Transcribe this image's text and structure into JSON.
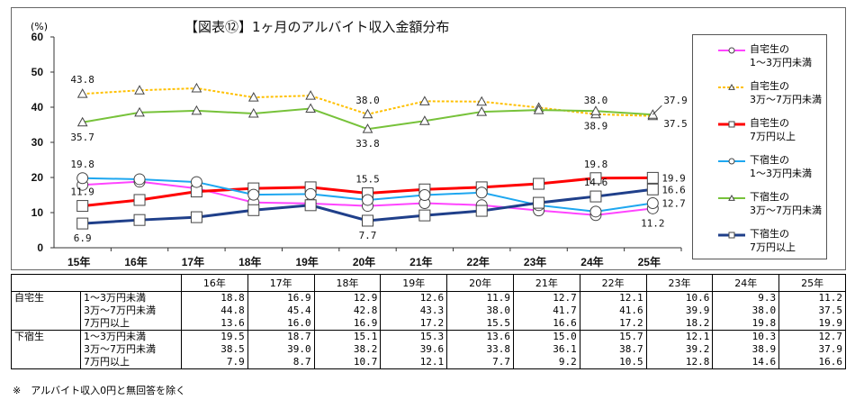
{
  "chart_data": {
    "type": "line",
    "title": "【図表⑫】1ヶ月のアルバイト収入金額分布",
    "ylabel": "(%)",
    "ylim": [
      0,
      60
    ],
    "yticks": [
      0,
      10,
      20,
      30,
      40,
      50,
      60
    ],
    "grid": false,
    "legend_placement": "right",
    "categories": [
      "15年",
      "16年",
      "17年",
      "18年",
      "19年",
      "20年",
      "21年",
      "22年",
      "23年",
      "24年",
      "25年"
    ],
    "series": [
      {
        "name": "自宅生の\n1～3万円未満",
        "color": "#ff44ff",
        "marker": "circle",
        "dashed": false,
        "values": [
          17.9,
          18.8,
          16.9,
          12.9,
          12.6,
          11.9,
          12.7,
          12.1,
          10.6,
          9.3,
          11.2
        ]
      },
      {
        "name": "自宅生の\n3万～7万円未満",
        "color": "#ffc000",
        "marker": "triangle",
        "dashed": true,
        "values": [
          43.8,
          44.8,
          45.4,
          42.8,
          43.3,
          38.0,
          41.7,
          41.6,
          39.9,
          38.0,
          37.5
        ]
      },
      {
        "name": "自宅生の\n7万円以上",
        "color": "#ff0000",
        "marker": "square",
        "dashed": false,
        "values": [
          11.9,
          13.6,
          16.0,
          16.9,
          17.2,
          15.5,
          16.6,
          17.2,
          18.2,
          19.8,
          19.9
        ]
      },
      {
        "name": "下宿生の\n1～3万円未満",
        "color": "#1ea7f0",
        "marker": "circle",
        "dashed": false,
        "values": [
          19.8,
          19.5,
          18.7,
          15.1,
          15.3,
          13.6,
          15.0,
          15.7,
          12.1,
          10.3,
          12.7
        ]
      },
      {
        "name": "下宿生の\n3万～7万円未満",
        "color": "#77c23a",
        "marker": "triangle",
        "dashed": false,
        "values": [
          35.7,
          38.5,
          39.0,
          38.2,
          39.6,
          33.8,
          36.1,
          38.7,
          39.2,
          38.9,
          37.9
        ]
      },
      {
        "name": "下宿生の\n7万円以上",
        "color": "#1f3f8a",
        "marker": "square",
        "dashed": false,
        "values": [
          6.9,
          7.9,
          8.7,
          10.7,
          12.1,
          7.7,
          9.2,
          10.5,
          12.8,
          14.6,
          16.6
        ]
      }
    ],
    "annotations": [
      {
        "text": "43.8",
        "series": 1,
        "index": 0,
        "pos": "above"
      },
      {
        "text": "35.7",
        "series": 4,
        "index": 0,
        "pos": "below"
      },
      {
        "text": "19.8",
        "series": 3,
        "index": 0,
        "pos": "above"
      },
      {
        "text": "11.9",
        "series": 2,
        "index": 0,
        "pos": "above"
      },
      {
        "text": "6.9",
        "series": 5,
        "index": 0,
        "pos": "below"
      },
      {
        "text": "38.0",
        "series": 1,
        "index": 5,
        "pos": "above"
      },
      {
        "text": "33.8",
        "series": 4,
        "index": 5,
        "pos": "below"
      },
      {
        "text": "15.5",
        "series": 2,
        "index": 5,
        "pos": "above"
      },
      {
        "text": "7.7",
        "series": 5,
        "index": 5,
        "pos": "below"
      },
      {
        "text": "38.0",
        "series": 1,
        "index": 9,
        "pos": "above"
      },
      {
        "text": "38.9",
        "series": 4,
        "index": 9,
        "pos": "below"
      },
      {
        "text": "19.8",
        "series": 2,
        "index": 9,
        "pos": "above"
      },
      {
        "text": "14.6",
        "series": 5,
        "index": 9,
        "pos": "above"
      },
      {
        "text": "37.9",
        "series": 4,
        "index": 10,
        "pos": "upright"
      },
      {
        "text": "37.5",
        "series": 1,
        "index": 10,
        "pos": "downright"
      },
      {
        "text": "19.9",
        "series": 2,
        "index": 10,
        "pos": "right"
      },
      {
        "text": "16.6",
        "series": 5,
        "index": 10,
        "pos": "right"
      },
      {
        "text": "12.7",
        "series": 3,
        "index": 10,
        "pos": "right"
      },
      {
        "text": "11.2",
        "series": 0,
        "index": 10,
        "pos": "below"
      }
    ]
  },
  "table": {
    "headers": [
      "16年",
      "17年",
      "18年",
      "19年",
      "20年",
      "21年",
      "22年",
      "23年",
      "24年",
      "25年"
    ],
    "groups": [
      {
        "label": "自宅生",
        "rows": [
          {
            "label": "1～3万円未満",
            "values": [
              "18.8",
              "16.9",
              "12.9",
              "12.6",
              "11.9",
              "12.7",
              "12.1",
              "10.6",
              "9.3",
              "11.2"
            ]
          },
          {
            "label": "3万～7万円未満",
            "values": [
              "44.8",
              "45.4",
              "42.8",
              "43.3",
              "38.0",
              "41.7",
              "41.6",
              "39.9",
              "38.0",
              "37.5"
            ]
          },
          {
            "label": "7万円以上",
            "values": [
              "13.6",
              "16.0",
              "16.9",
              "17.2",
              "15.5",
              "16.6",
              "17.2",
              "18.2",
              "19.8",
              "19.9"
            ]
          }
        ]
      },
      {
        "label": "下宿生",
        "rows": [
          {
            "label": "1～3万円未満",
            "values": [
              "19.5",
              "18.7",
              "15.1",
              "15.3",
              "13.6",
              "15.0",
              "15.7",
              "12.1",
              "10.3",
              "12.7"
            ]
          },
          {
            "label": "3万～7万円未満",
            "values": [
              "38.5",
              "39.0",
              "38.2",
              "39.6",
              "33.8",
              "36.1",
              "38.7",
              "39.2",
              "38.9",
              "37.9"
            ]
          },
          {
            "label": "7万円以上",
            "values": [
              "7.9",
              "8.7",
              "10.7",
              "12.1",
              "7.7",
              "9.2",
              "10.5",
              "12.8",
              "14.6",
              "16.6"
            ]
          }
        ]
      }
    ]
  },
  "footnote": "※　アルバイト収入0円と無回答を除く"
}
